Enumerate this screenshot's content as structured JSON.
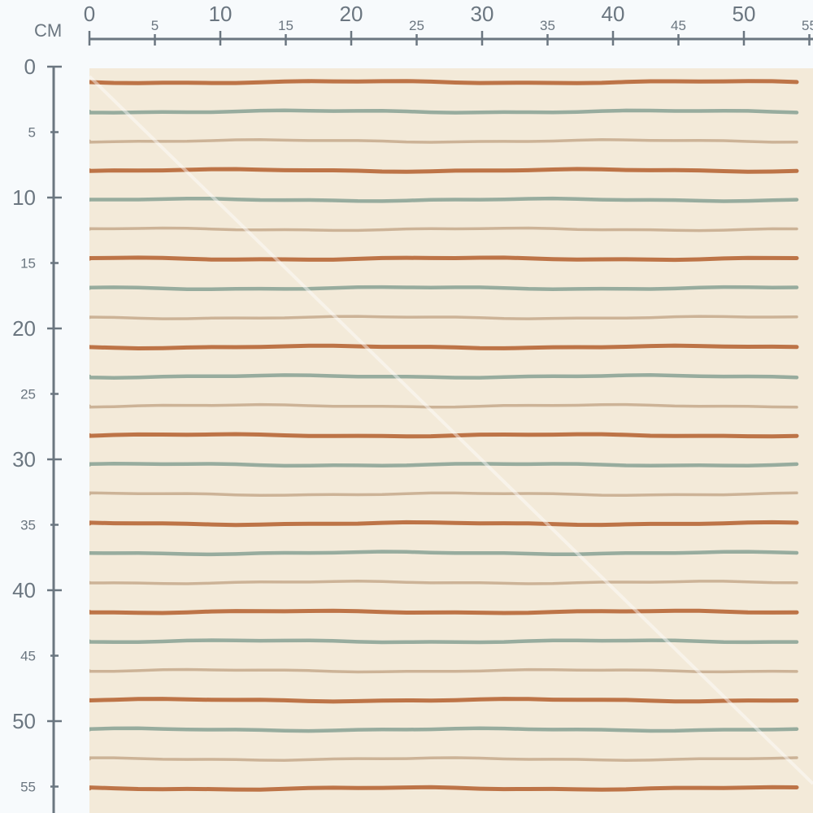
{
  "ruler": {
    "unit": "CM",
    "horizontal_labels": [
      "0",
      "5",
      "10",
      "15",
      "20",
      "25",
      "30",
      "35",
      "40",
      "45",
      "50",
      "55"
    ],
    "vertical_labels": [
      "0",
      "5",
      "10",
      "15",
      "20",
      "25",
      "30",
      "35",
      "40",
      "45",
      "50",
      "55"
    ]
  },
  "fabric": {
    "pattern": "horizontal hand-drawn stripes",
    "background_color": "#f3ead9",
    "stripe_colors": [
      "#b8693b",
      "#8fa699",
      "#c9ae91"
    ]
  }
}
